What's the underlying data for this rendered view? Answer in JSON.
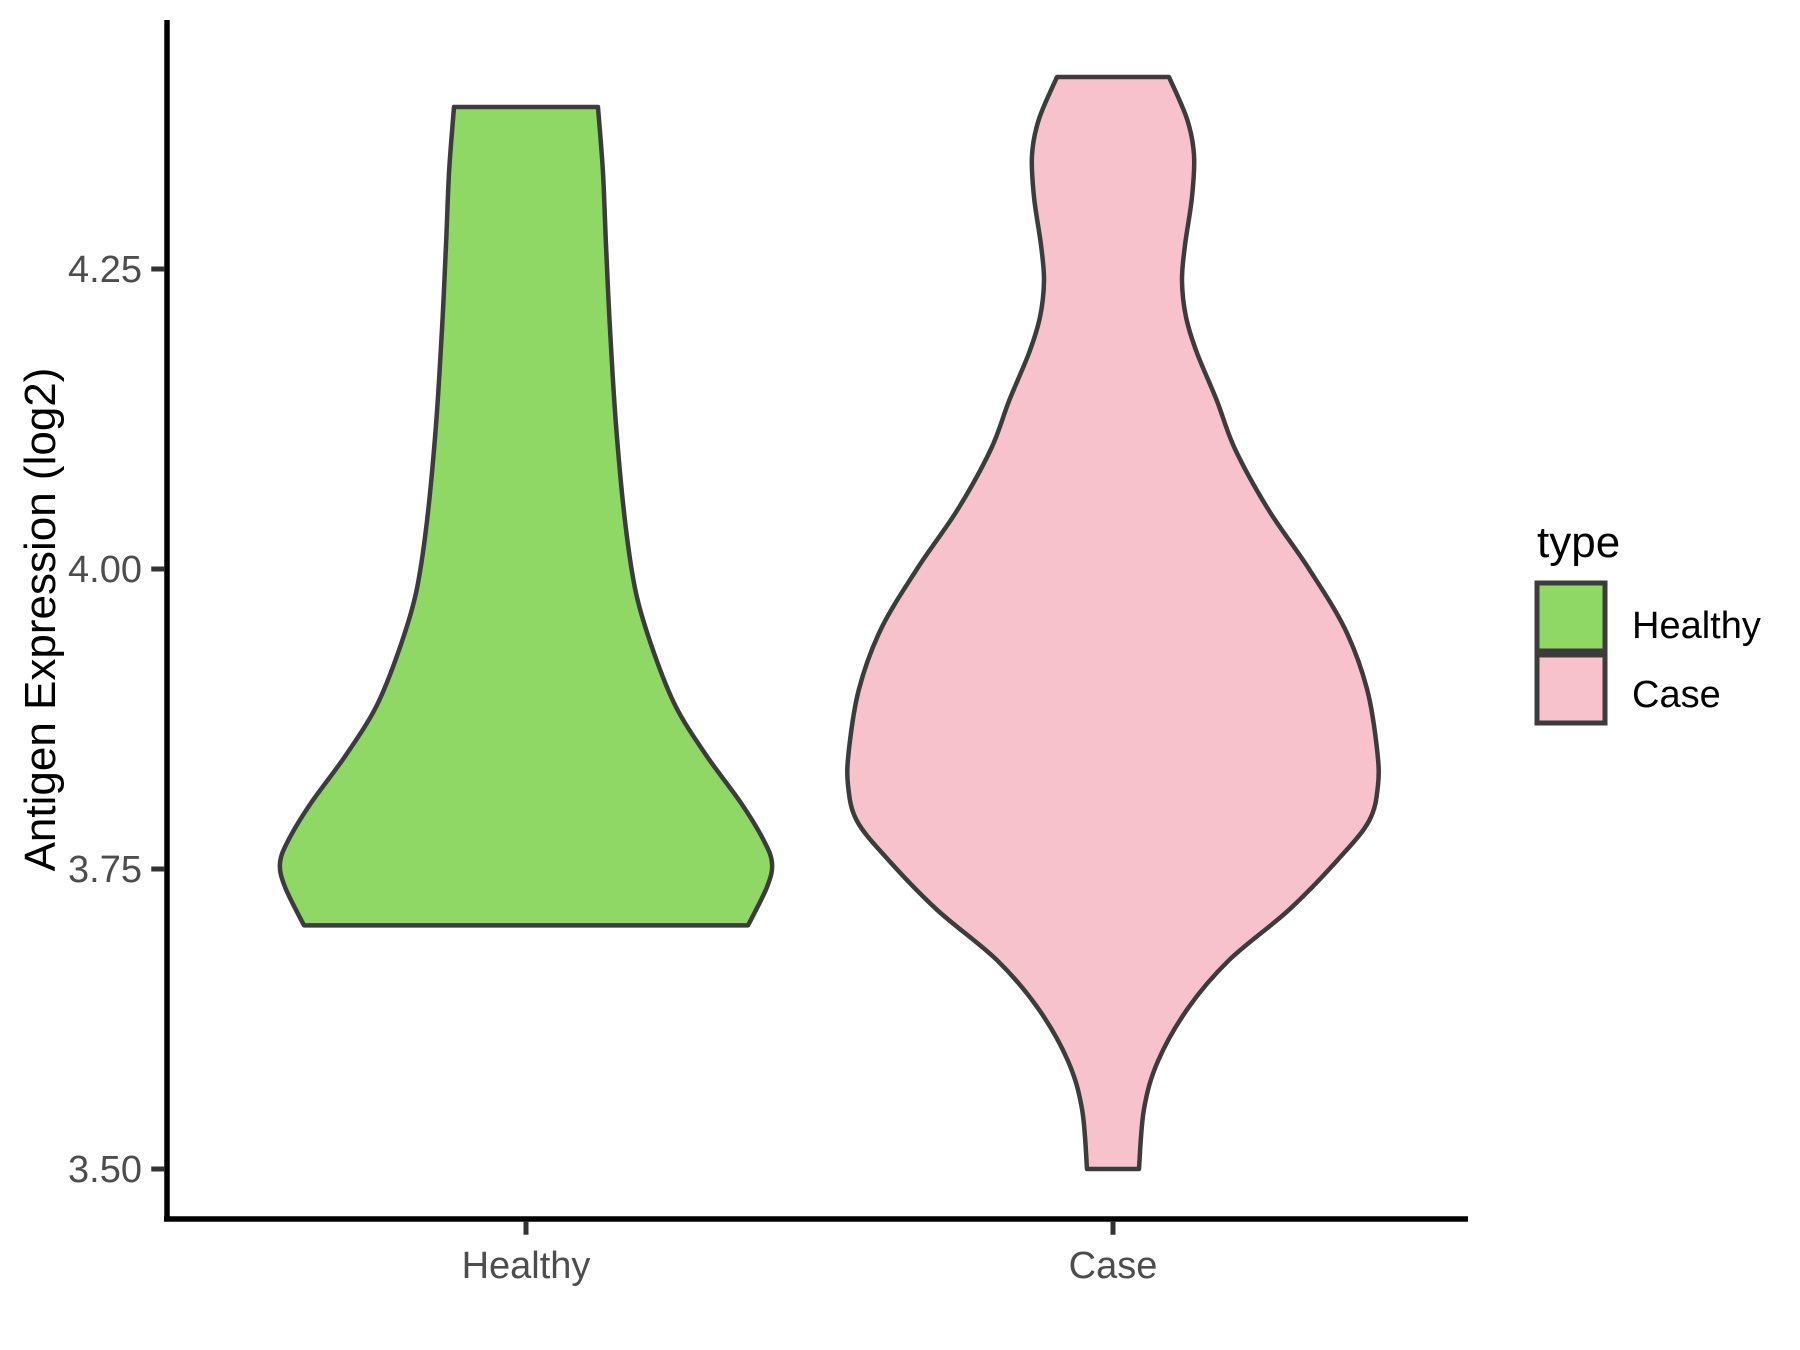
{
  "chart_data": {
    "type": "violin",
    "title": "",
    "xlabel": "",
    "ylabel": "Antigen Expression (log2)",
    "categories": [
      "Healthy",
      "Case"
    ],
    "y_ticks": [
      {
        "label": "4.25",
        "value": 4.25
      },
      {
        "label": "4.00",
        "value": 4.0
      },
      {
        "label": "3.75",
        "value": 3.75
      },
      {
        "label": "3.50",
        "value": 3.5
      }
    ],
    "y_axis_range": [
      3.44,
      4.45
    ],
    "grid": "off",
    "legend": {
      "title": "type",
      "position": "right",
      "entries": [
        {
          "label": "Healthy",
          "color": "#90D866"
        },
        {
          "label": "Case",
          "color": "#F8C2CD"
        }
      ]
    },
    "series": [
      {
        "name": "Healthy",
        "fill": "#90D866",
        "trim_min": 3.7,
        "trim_max": 4.39,
        "profile": [
          [
            4.385,
            72
          ],
          [
            4.33,
            77
          ],
          [
            4.27,
            80
          ],
          [
            4.2,
            84
          ],
          [
            4.12,
            90
          ],
          [
            4.04,
            99
          ],
          [
            3.98,
            110
          ],
          [
            3.93,
            128
          ],
          [
            3.885,
            150
          ],
          [
            3.845,
            180
          ],
          [
            3.805,
            215
          ],
          [
            3.775,
            237
          ],
          [
            3.755,
            246
          ],
          [
            3.735,
            241
          ],
          [
            3.703,
            222
          ]
        ]
      },
      {
        "name": "Case",
        "fill": "#F8C2CD",
        "trim_min": 3.5,
        "trim_max": 4.41,
        "profile": [
          [
            4.41,
            56
          ],
          [
            4.375,
            74
          ],
          [
            4.345,
            81
          ],
          [
            4.31,
            79
          ],
          [
            4.27,
            72
          ],
          [
            4.24,
            69
          ],
          [
            4.21,
            73
          ],
          [
            4.18,
            84
          ],
          [
            4.14,
            104
          ],
          [
            4.1,
            122
          ],
          [
            4.05,
            155
          ],
          [
            4.0,
            196
          ],
          [
            3.95,
            232
          ],
          [
            3.9,
            254
          ],
          [
            3.85,
            264
          ],
          [
            3.82,
            265
          ],
          [
            3.79,
            256
          ],
          [
            3.757,
            224
          ],
          [
            3.716,
            176
          ],
          [
            3.674,
            116
          ],
          [
            3.634,
            75
          ],
          [
            3.59,
            45
          ],
          [
            3.55,
            31
          ],
          [
            3.5,
            26
          ]
        ]
      }
    ],
    "style": {
      "violin_outline": "#3C3C3C",
      "axis_line_color": "#000000",
      "tick_mark_color": "#333333",
      "tick_label_color": "#4D4D4D",
      "axis_title_color": "#000000",
      "legend_text_color": "#000000",
      "background": "#FFFFFF"
    }
  }
}
